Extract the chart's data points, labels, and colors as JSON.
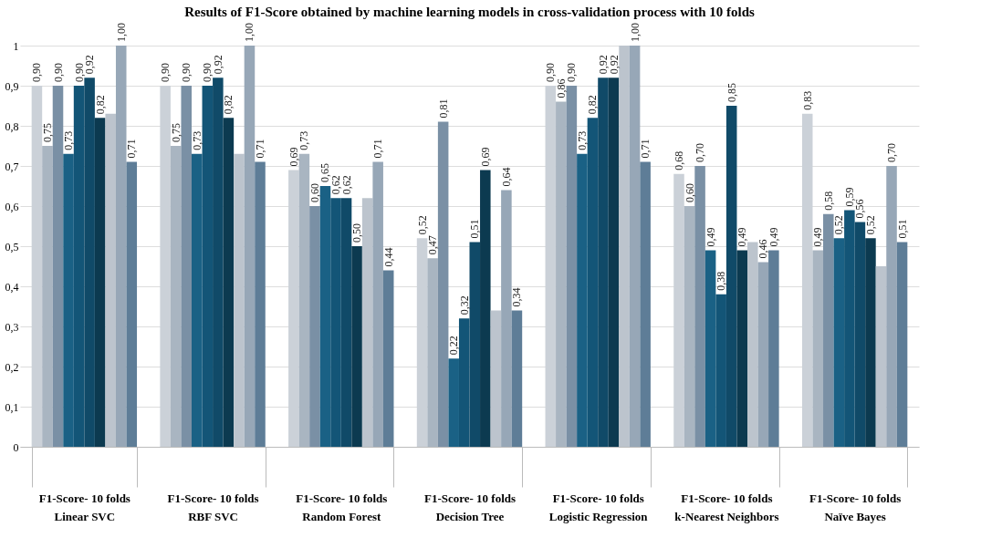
{
  "chart_data": {
    "type": "bar",
    "title": "Results of F1-Score obtained by machine learning models in cross-validation process with 10 folds",
    "categories": [
      "F1-Score- 10 folds\nLinear SVC",
      "F1-Score- 10 folds\nRBF SVC",
      "F1-Score- 10 folds\nRandom Forest",
      "F1-Score- 10 folds\nDecision Tree",
      "F1-Score- 10 folds\nLogistic Regression",
      "F1-Score- 10 folds\nk-Nearest Neighbors",
      "F1-Score- 10 folds\nNaïve Bayes"
    ],
    "series": [
      {
        "color": "#cbd1d8",
        "values": [
          0.9,
          0.9,
          0.69,
          0.52,
          0.9,
          0.68,
          0.83
        ],
        "value_labels": [
          "0,90",
          "0,90",
          "0,69",
          "0,52",
          "0,90",
          "0,68",
          "0,83"
        ]
      },
      {
        "color": "#a9b5c1",
        "values": [
          0.75,
          0.75,
          0.73,
          0.47,
          0.86,
          0.6,
          0.49
        ],
        "value_labels": [
          "0,75",
          "0,75",
          "0,73",
          "0,47",
          "0,86",
          "0,60",
          "0,49"
        ]
      },
      {
        "color": "#7a90a5",
        "values": [
          0.9,
          0.9,
          0.6,
          0.81,
          0.9,
          0.7,
          0.58
        ],
        "value_labels": [
          "0,90",
          "0,90",
          "0,60",
          "0,81",
          "0,90",
          "0,70",
          "0,58"
        ]
      },
      {
        "color": "#1a6185",
        "values": [
          0.73,
          0.73,
          0.65,
          0.22,
          0.73,
          0.49,
          0.52
        ],
        "value_labels": [
          "0,73",
          "0,73",
          "0,65",
          "0,22",
          "0,73",
          "0,49",
          "0,52"
        ]
      },
      {
        "color": "#135577",
        "values": [
          0.9,
          0.9,
          0.62,
          0.32,
          0.82,
          0.38,
          0.59
        ],
        "value_labels": [
          "0,90",
          "0,90",
          "0,62",
          "0,32",
          "0,82",
          "0,38",
          "0,59"
        ]
      },
      {
        "color": "#104a68",
        "values": [
          0.92,
          0.92,
          0.62,
          0.51,
          0.92,
          0.85,
          0.56
        ],
        "value_labels": [
          "0,92",
          "0,92",
          "0,62",
          "0,51",
          "0,92",
          "0,85",
          "0,56"
        ]
      },
      {
        "color": "#0c3a50",
        "values": [
          0.82,
          0.82,
          0.5,
          0.69,
          0.92,
          0.49,
          0.52
        ],
        "value_labels": [
          "0,82",
          "0,82",
          "0,50",
          "0,69",
          "0,92",
          "0,49",
          "0,52"
        ]
      },
      {
        "color": "#bcc4cd",
        "values": [
          0.83,
          0.73,
          0.62,
          0.34,
          1.0,
          0.51,
          0.45
        ],
        "value_labels": [
          null,
          null,
          null,
          null,
          null,
          null,
          null
        ]
      },
      {
        "color": "#97a7b7",
        "values": [
          1.0,
          1.0,
          0.71,
          0.64,
          1.0,
          0.46,
          0.7
        ],
        "value_labels": [
          "1,00",
          "1,00",
          "0,71",
          "0,64",
          "1,00",
          "0,46",
          "0,70"
        ]
      },
      {
        "color": "#5e7d97",
        "values": [
          0.71,
          0.71,
          0.44,
          0.34,
          0.71,
          0.49,
          0.51
        ],
        "value_labels": [
          "0,71",
          "0,71",
          "0,44",
          "0,34",
          "0,71",
          "0,49",
          "0,51"
        ]
      }
    ],
    "ylim": [
      0,
      1
    ],
    "yticks": [
      0,
      {
        "value": 0.1,
        "label": "0,1"
      },
      {
        "value": 0.2,
        "label": "0,2"
      },
      {
        "value": 0.3,
        "label": "0,3"
      },
      {
        "value": 0.4,
        "label": "0,4"
      },
      {
        "value": 0.5,
        "label": "0,5"
      },
      {
        "value": 0.6,
        "label": "0,6"
      },
      {
        "value": 0.7,
        "label": "0,7"
      },
      {
        "value": 0.8,
        "label": "0,8"
      },
      {
        "value": 0.9,
        "label": "0,9"
      },
      1
    ],
    "grid": "y",
    "legend": false
  }
}
